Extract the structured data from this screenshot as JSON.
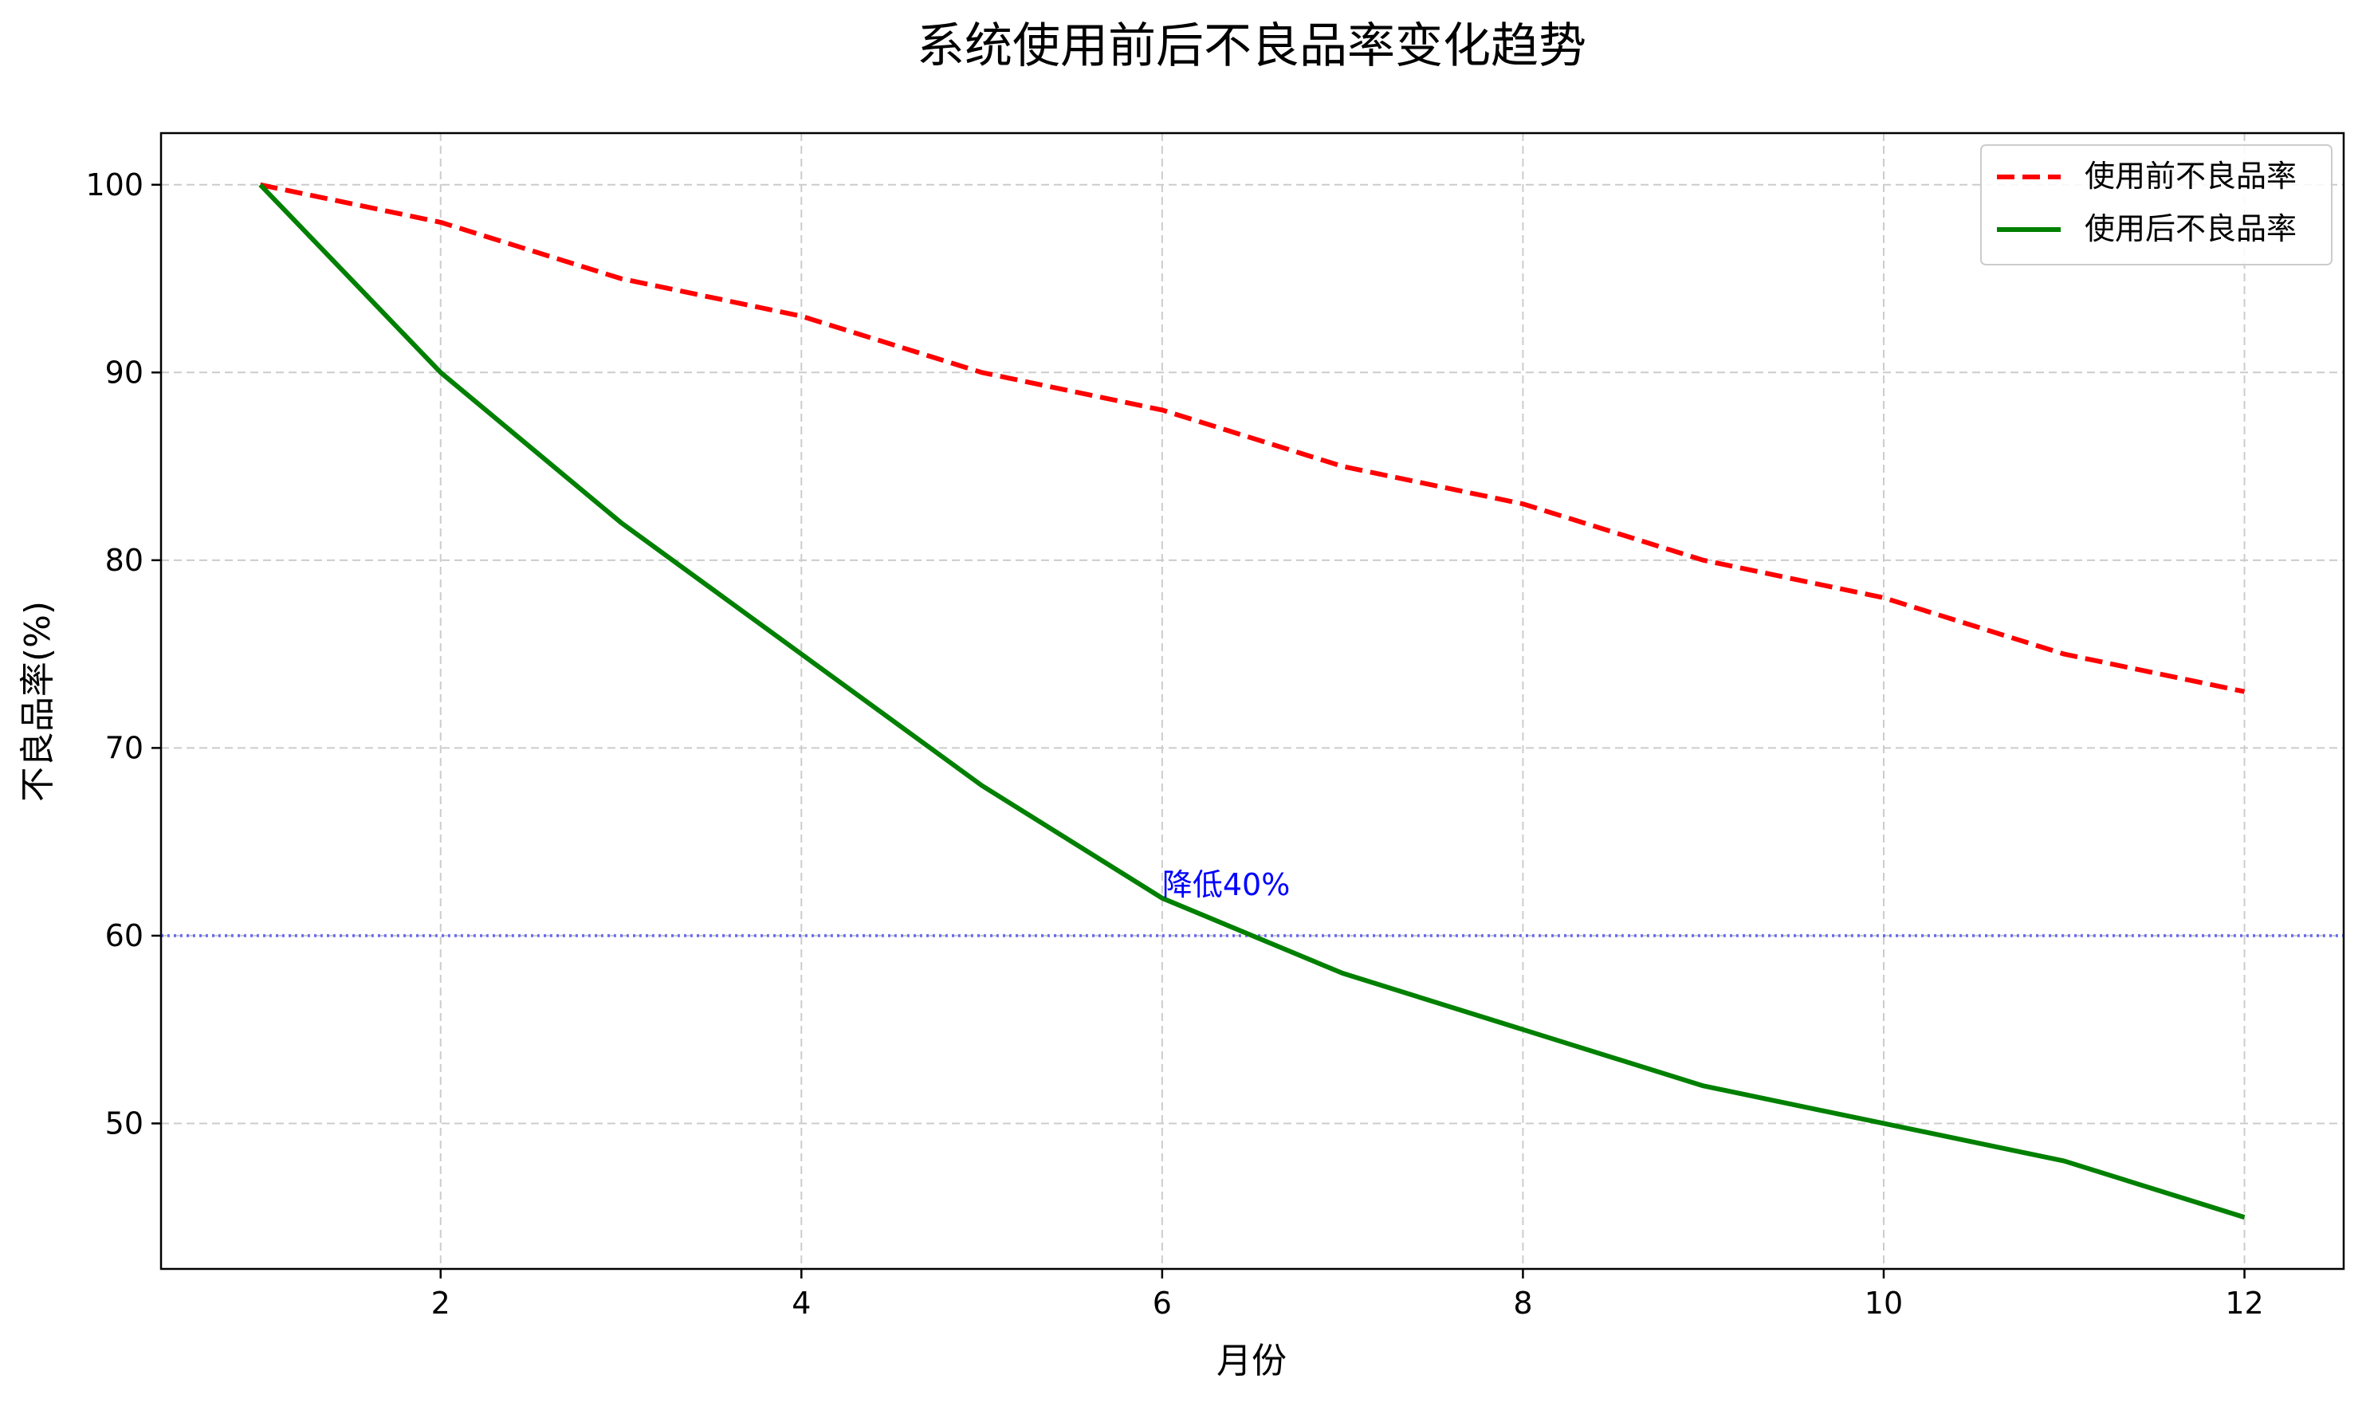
{
  "chart_data": {
    "type": "line",
    "title": "系统使用前后不良品率变化趋势",
    "xlabel": "月份",
    "ylabel": "不良品率(%)",
    "x": [
      1,
      2,
      3,
      4,
      5,
      6,
      7,
      8,
      9,
      10,
      11,
      12
    ],
    "xlim": [
      0.45,
      12.55
    ],
    "ylim": [
      42.25,
      102.75
    ],
    "xticks": [
      2,
      4,
      6,
      8,
      10,
      12
    ],
    "yticks": [
      50,
      60,
      70,
      80,
      90,
      100
    ],
    "grid": true,
    "legend_position": "top-right",
    "series": [
      {
        "name": "使用前不良品率",
        "values": [
          100,
          98,
          95,
          93,
          90,
          88,
          85,
          83,
          80,
          78,
          75,
          73
        ],
        "color": "#ff0000",
        "style": "dashed"
      },
      {
        "name": "使用后不良品率",
        "values": [
          100,
          90,
          82,
          75,
          68,
          62,
          58,
          55,
          52,
          50,
          48,
          45
        ],
        "color": "#008000",
        "style": "solid"
      }
    ],
    "reference_lines": [
      {
        "y": 60,
        "color": "#0000ff",
        "style": "dotted"
      }
    ],
    "annotations": [
      {
        "text": "降低40%",
        "x": 6,
        "y": 62,
        "color": "#0000ff"
      }
    ]
  }
}
